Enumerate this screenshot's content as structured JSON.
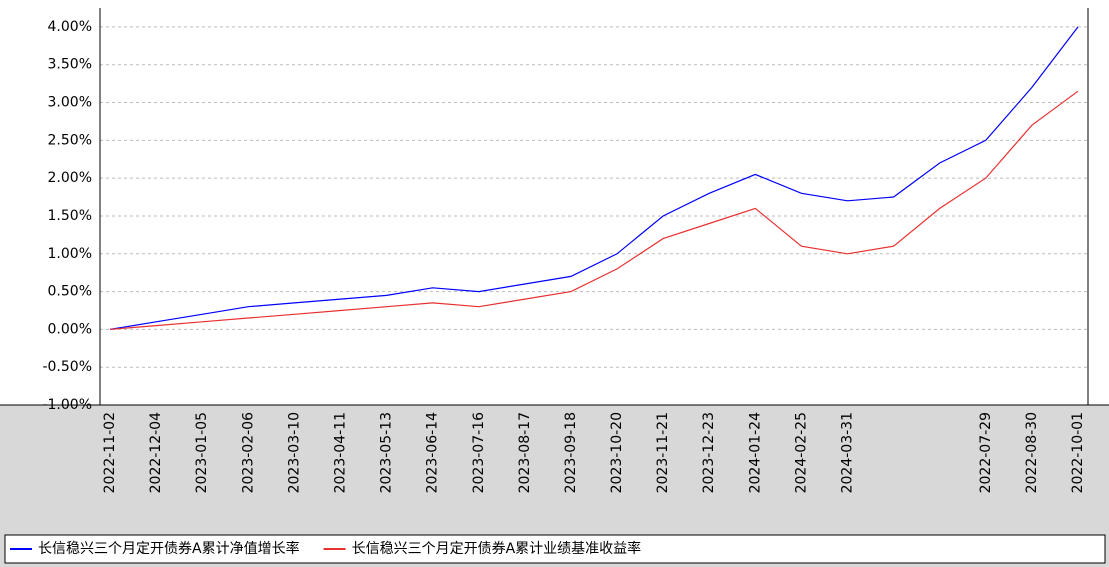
{
  "chart_data": {
    "type": "line",
    "categories": [
      "2022-11-02",
      "2022-12-04",
      "2023-01-05",
      "2023-02-06",
      "2023-03-10",
      "2023-04-11",
      "2023-05-13",
      "2023-06-14",
      "2023-07-16",
      "2023-08-17",
      "2023-09-18",
      "2023-10-20",
      "2023-11-21",
      "2023-12-23",
      "2024-01-24",
      "2024-02-25",
      "2024-03-31",
      null,
      null,
      "2022-07-29",
      "2022-08-30",
      "2022-10-01"
    ],
    "series": [
      {
        "name": "长信稳兴三个月定开债券A累计净值增长率",
        "color": "#0000ff",
        "values": [
          0.0,
          0.1,
          0.2,
          0.3,
          0.35,
          0.4,
          0.45,
          0.55,
          0.5,
          0.6,
          0.7,
          1.0,
          1.5,
          1.8,
          2.05,
          1.8,
          1.7,
          1.75,
          2.2,
          2.5,
          3.2,
          4.0
        ]
      },
      {
        "name": "长信稳兴三个月定开债券A累计业绩基准收益率",
        "color": "#e83030",
        "values": [
          0.0,
          0.05,
          0.1,
          0.15,
          0.2,
          0.25,
          0.3,
          0.35,
          0.3,
          0.4,
          0.5,
          0.8,
          1.2,
          1.4,
          1.6,
          1.1,
          1.0,
          1.1,
          1.6,
          2.0,
          2.7,
          3.15
        ]
      }
    ],
    "ylim": [
      -1.0,
      4.25
    ],
    "yticks": [
      {
        "value": 4.0,
        "label": "4.00%"
      },
      {
        "value": 3.5,
        "label": "3.50%"
      },
      {
        "value": 3.0,
        "label": "3.00%"
      },
      {
        "value": 2.5,
        "label": "2.50%"
      },
      {
        "value": 2.0,
        "label": "2.00%"
      },
      {
        "value": 1.5,
        "label": "1.50%"
      },
      {
        "value": 1.0,
        "label": "1.00%"
      },
      {
        "value": 0.5,
        "label": "0.50%"
      },
      {
        "value": 0.0,
        "label": "0.00%"
      },
      {
        "value": -0.5,
        "label": "-0.50%"
      },
      {
        "value": -1.0,
        "label": "-1.00%"
      }
    ],
    "grid": true
  }
}
